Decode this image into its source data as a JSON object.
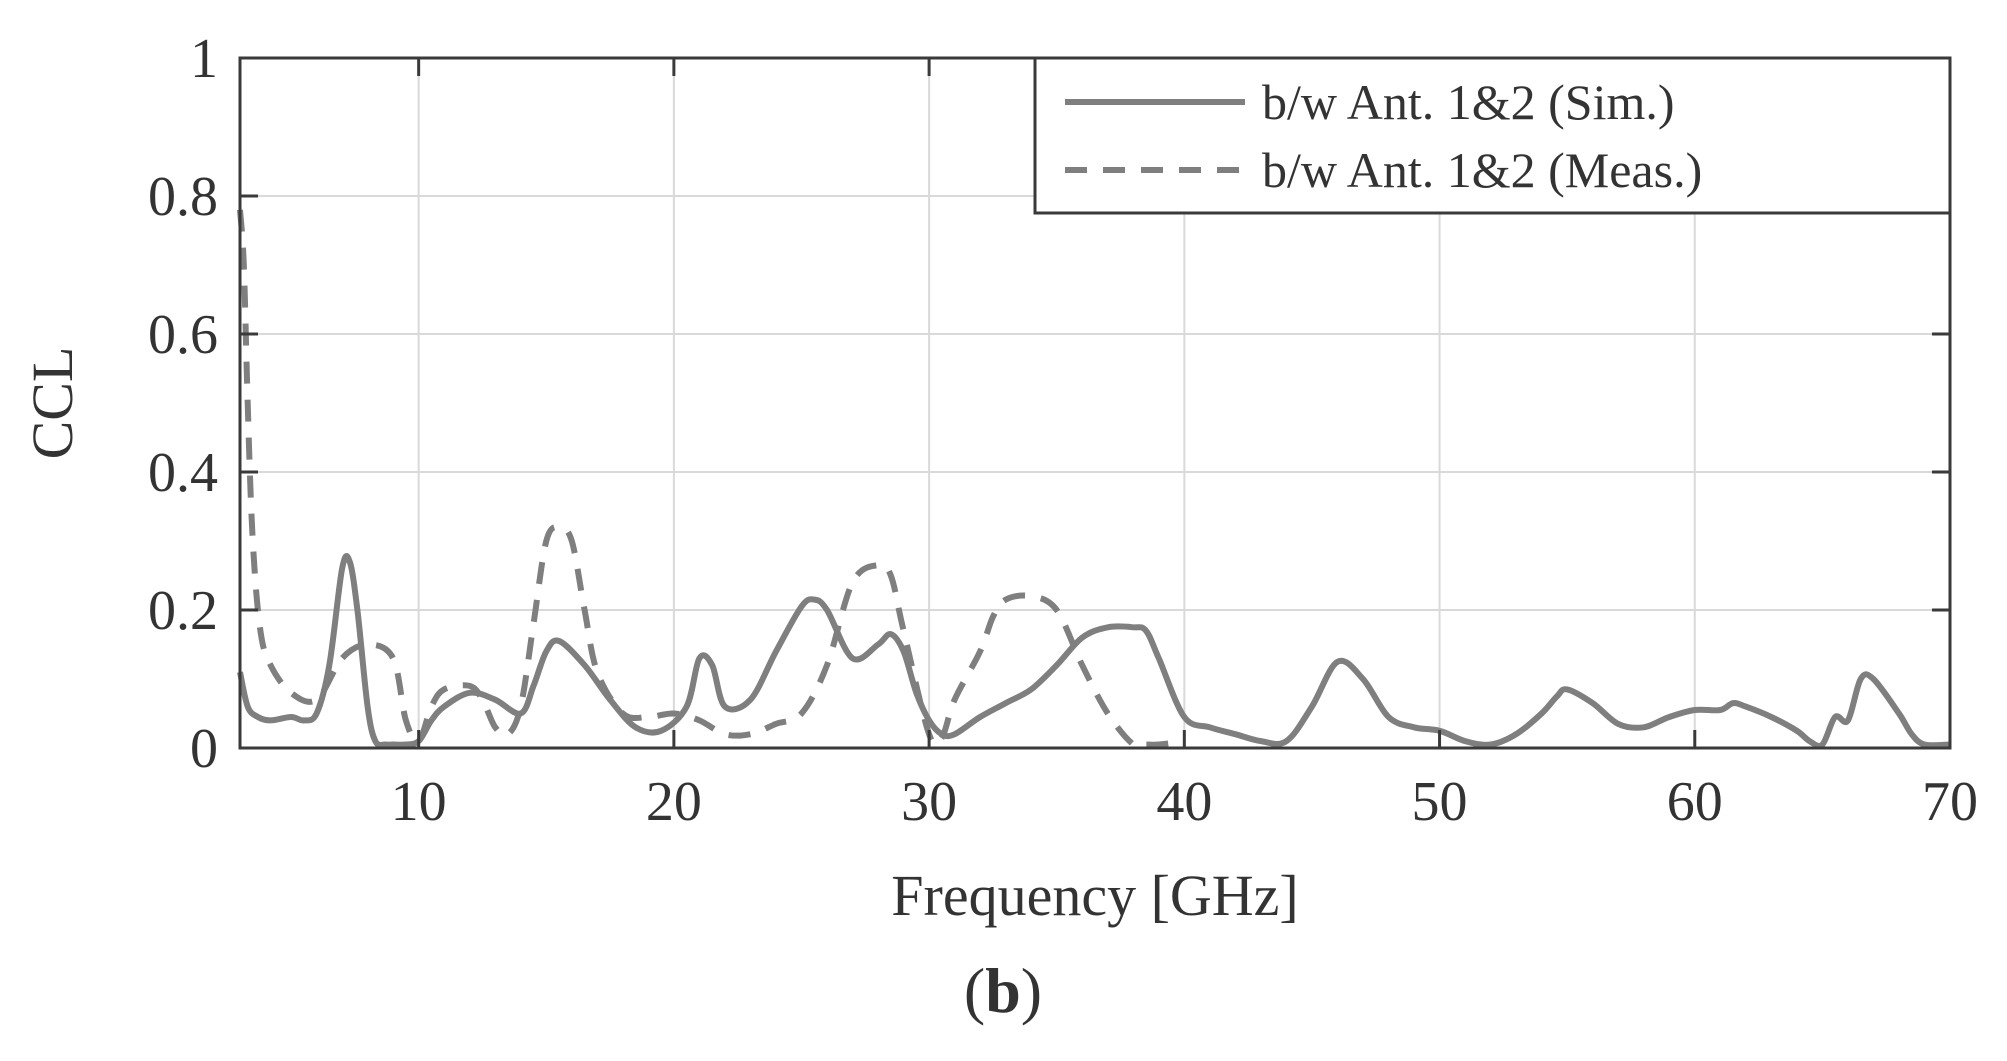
{
  "panel_label": {
    "open": "(",
    "letter": "b",
    "close": ")"
  },
  "colors": {
    "series": "#7f7f7f",
    "grid": "#d9d9d9",
    "axis": "#3a3a3a",
    "text": "#333333"
  },
  "chart_data": {
    "type": "line",
    "title": "",
    "xlabel": "Frequency [GHz]",
    "ylabel": "CCL",
    "xlim": [
      3,
      70
    ],
    "ylim": [
      0,
      1
    ],
    "xticks": [
      10,
      20,
      30,
      40,
      50,
      60,
      70
    ],
    "xtick_labels": [
      "10",
      "20",
      "30",
      "40",
      "50",
      "60",
      "70"
    ],
    "yticks": [
      0,
      0.2,
      0.4,
      0.6,
      0.8,
      1
    ],
    "ytick_labels": [
      "0",
      "0.2",
      "0.4",
      "0.6",
      "0.8",
      "1"
    ],
    "grid": true,
    "legend_position": "top-right",
    "series": [
      {
        "name": "b/w Ant. 1&2 (Sim.)",
        "style": "solid",
        "x": [
          3,
          3.3,
          3.7,
          4.2,
          5,
          5.5,
          6,
          6.5,
          7,
          7.3,
          7.6,
          8,
          8.3,
          8.7,
          9,
          9.5,
          10,
          10.5,
          11,
          12,
          13,
          14,
          14.5,
          15,
          15.5,
          16.5,
          17.5,
          18.5,
          19.5,
          20.5,
          21,
          21.5,
          22,
          23,
          24,
          25,
          25.5,
          26,
          27,
          28,
          28.5,
          29,
          29.5,
          30,
          30.5,
          31,
          32,
          33,
          34,
          35,
          36,
          37,
          38,
          38.5,
          39,
          40,
          41,
          42,
          43,
          44,
          45,
          46,
          47,
          48,
          49,
          50,
          51,
          52,
          53,
          54,
          54.6,
          55,
          56,
          57,
          58,
          59,
          60,
          61,
          61.5,
          62,
          63,
          64,
          64.5,
          65,
          65.5,
          66,
          66.5,
          67,
          68,
          68.5,
          69,
          70
        ],
        "values": [
          0.11,
          0.06,
          0.045,
          0.04,
          0.045,
          0.04,
          0.05,
          0.12,
          0.26,
          0.27,
          0.2,
          0.06,
          0.01,
          0.005,
          0.005,
          0.005,
          0.01,
          0.04,
          0.06,
          0.08,
          0.07,
          0.05,
          0.09,
          0.14,
          0.155,
          0.12,
          0.07,
          0.03,
          0.025,
          0.06,
          0.13,
          0.12,
          0.06,
          0.07,
          0.14,
          0.205,
          0.215,
          0.2,
          0.13,
          0.15,
          0.165,
          0.14,
          0.08,
          0.04,
          0.02,
          0.02,
          0.045,
          0.065,
          0.085,
          0.12,
          0.16,
          0.175,
          0.175,
          0.17,
          0.13,
          0.045,
          0.03,
          0.02,
          0.01,
          0.01,
          0.06,
          0.125,
          0.1,
          0.045,
          0.03,
          0.025,
          0.01,
          0.005,
          0.02,
          0.05,
          0.075,
          0.085,
          0.065,
          0.035,
          0.03,
          0.045,
          0.055,
          0.055,
          0.065,
          0.06,
          0.045,
          0.025,
          0.01,
          0.005,
          0.045,
          0.04,
          0.1,
          0.1,
          0.05,
          0.02,
          0.005,
          0.005
        ]
      },
      {
        "name": "b/w Ant. 1&2 (Meas.)",
        "style": "dashed",
        "x": [
          3,
          3.15,
          3.3,
          3.5,
          3.8,
          4.2,
          5,
          6,
          7,
          8,
          9,
          9.5,
          10,
          10.5,
          11,
          12,
          12.5,
          13,
          13.5,
          14,
          14.5,
          15,
          15.5,
          16,
          16.5,
          17,
          18,
          19,
          20,
          21,
          22,
          23,
          24,
          25,
          26,
          27,
          28,
          28.5,
          29,
          30,
          30.5,
          31,
          32,
          32.5,
          33,
          34,
          35,
          36,
          37,
          38,
          38.5,
          39,
          40
        ],
        "values": [
          0.78,
          0.7,
          0.5,
          0.3,
          0.17,
          0.12,
          0.08,
          0.07,
          0.13,
          0.15,
          0.13,
          0.04,
          0.01,
          0.06,
          0.085,
          0.09,
          0.07,
          0.03,
          0.02,
          0.06,
          0.18,
          0.3,
          0.32,
          0.3,
          0.2,
          0.11,
          0.05,
          0.045,
          0.05,
          0.04,
          0.02,
          0.02,
          0.035,
          0.05,
          0.12,
          0.24,
          0.265,
          0.25,
          0.17,
          0.02,
          0.015,
          0.07,
          0.14,
          0.19,
          0.215,
          0.22,
          0.2,
          0.12,
          0.05,
          0.005,
          0.005,
          0.005,
          0.01
        ]
      }
    ]
  }
}
